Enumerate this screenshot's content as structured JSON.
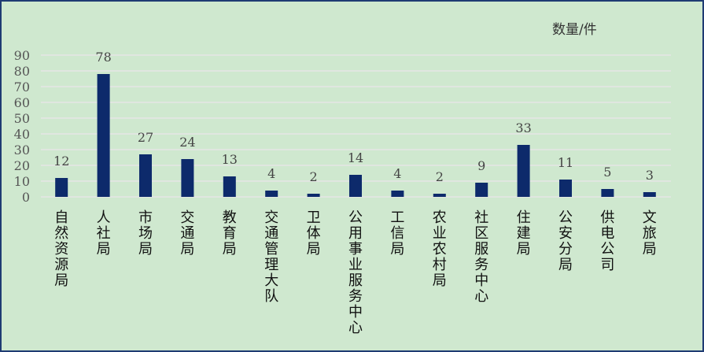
{
  "chart_data": {
    "type": "bar",
    "unit_label": "数量/件",
    "categories": [
      "自然资源局",
      "人社局",
      "市场局",
      "交通局",
      "教育局",
      "交通管理大队",
      "卫体局",
      "公用事业服务中心",
      "工信局",
      "农业农村局",
      "社区服务中心",
      "住建局",
      "公安分局",
      "供电公司",
      "文旅局"
    ],
    "series": [
      {
        "values": [
          12,
          78,
          27,
          24,
          13,
          4,
          2,
          14,
          4,
          2,
          9,
          33,
          11,
          5,
          3
        ]
      }
    ],
    "ylim": [
      0,
      90
    ],
    "yticks": [
      0,
      10,
      20,
      30,
      40,
      50,
      60,
      70,
      80,
      90
    ],
    "grid": true,
    "colors": {
      "bar": "#0d2a6b",
      "grid": "#e6e6e6",
      "background": "#cfe8cf",
      "border": "#1f3b73"
    }
  }
}
